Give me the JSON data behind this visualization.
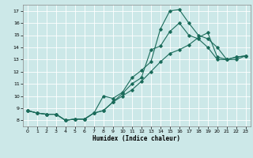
{
  "xlabel": "Humidex (Indice chaleur)",
  "bg_color": "#cce8e8",
  "grid_color": "#ffffff",
  "line_color": "#1a6b5a",
  "xlim": [
    -0.5,
    23.5
  ],
  "ylim": [
    7.5,
    17.5
  ],
  "xticks": [
    0,
    1,
    2,
    3,
    4,
    5,
    6,
    7,
    8,
    9,
    10,
    11,
    12,
    13,
    14,
    15,
    16,
    17,
    18,
    19,
    20,
    21,
    22,
    23
  ],
  "yticks": [
    8,
    9,
    10,
    11,
    12,
    13,
    14,
    15,
    16,
    17
  ],
  "line_peak_x": [
    0,
    1,
    2,
    3,
    4,
    5,
    6,
    7,
    8,
    9,
    10,
    11,
    12,
    13,
    14,
    15,
    16,
    17,
    18,
    19,
    20,
    21,
    22,
    23
  ],
  "line_peak_y": [
    8.8,
    8.6,
    8.5,
    8.5,
    8.0,
    8.1,
    8.1,
    8.6,
    10.0,
    9.8,
    10.3,
    11.5,
    12.1,
    12.8,
    15.5,
    17.0,
    17.1,
    16.0,
    15.0,
    14.7,
    14.0,
    13.0,
    13.2,
    13.3
  ],
  "line_mid_x": [
    0,
    1,
    2,
    3,
    4,
    5,
    6,
    7,
    8,
    9,
    10,
    11,
    12,
    13,
    14,
    15,
    16,
    17,
    18,
    19,
    20,
    21,
    22,
    23
  ],
  "line_mid_y": [
    8.8,
    8.6,
    8.5,
    8.5,
    8.0,
    8.1,
    8.1,
    8.6,
    8.8,
    9.5,
    10.2,
    11.0,
    11.5,
    13.8,
    14.1,
    15.3,
    16.0,
    15.0,
    14.7,
    14.0,
    13.0,
    13.0,
    13.2,
    13.3
  ],
  "line_lin_x": [
    0,
    1,
    2,
    3,
    4,
    5,
    6,
    7,
    8,
    9,
    10,
    11,
    12,
    13,
    14,
    15,
    16,
    17,
    18,
    19,
    20,
    21,
    22,
    23
  ],
  "line_lin_y": [
    8.8,
    8.6,
    8.5,
    8.5,
    8.0,
    8.1,
    8.1,
    8.6,
    8.8,
    9.5,
    10.0,
    10.5,
    11.2,
    12.0,
    12.8,
    13.5,
    13.8,
    14.2,
    14.8,
    15.2,
    13.2,
    13.0,
    13.0,
    13.3
  ]
}
